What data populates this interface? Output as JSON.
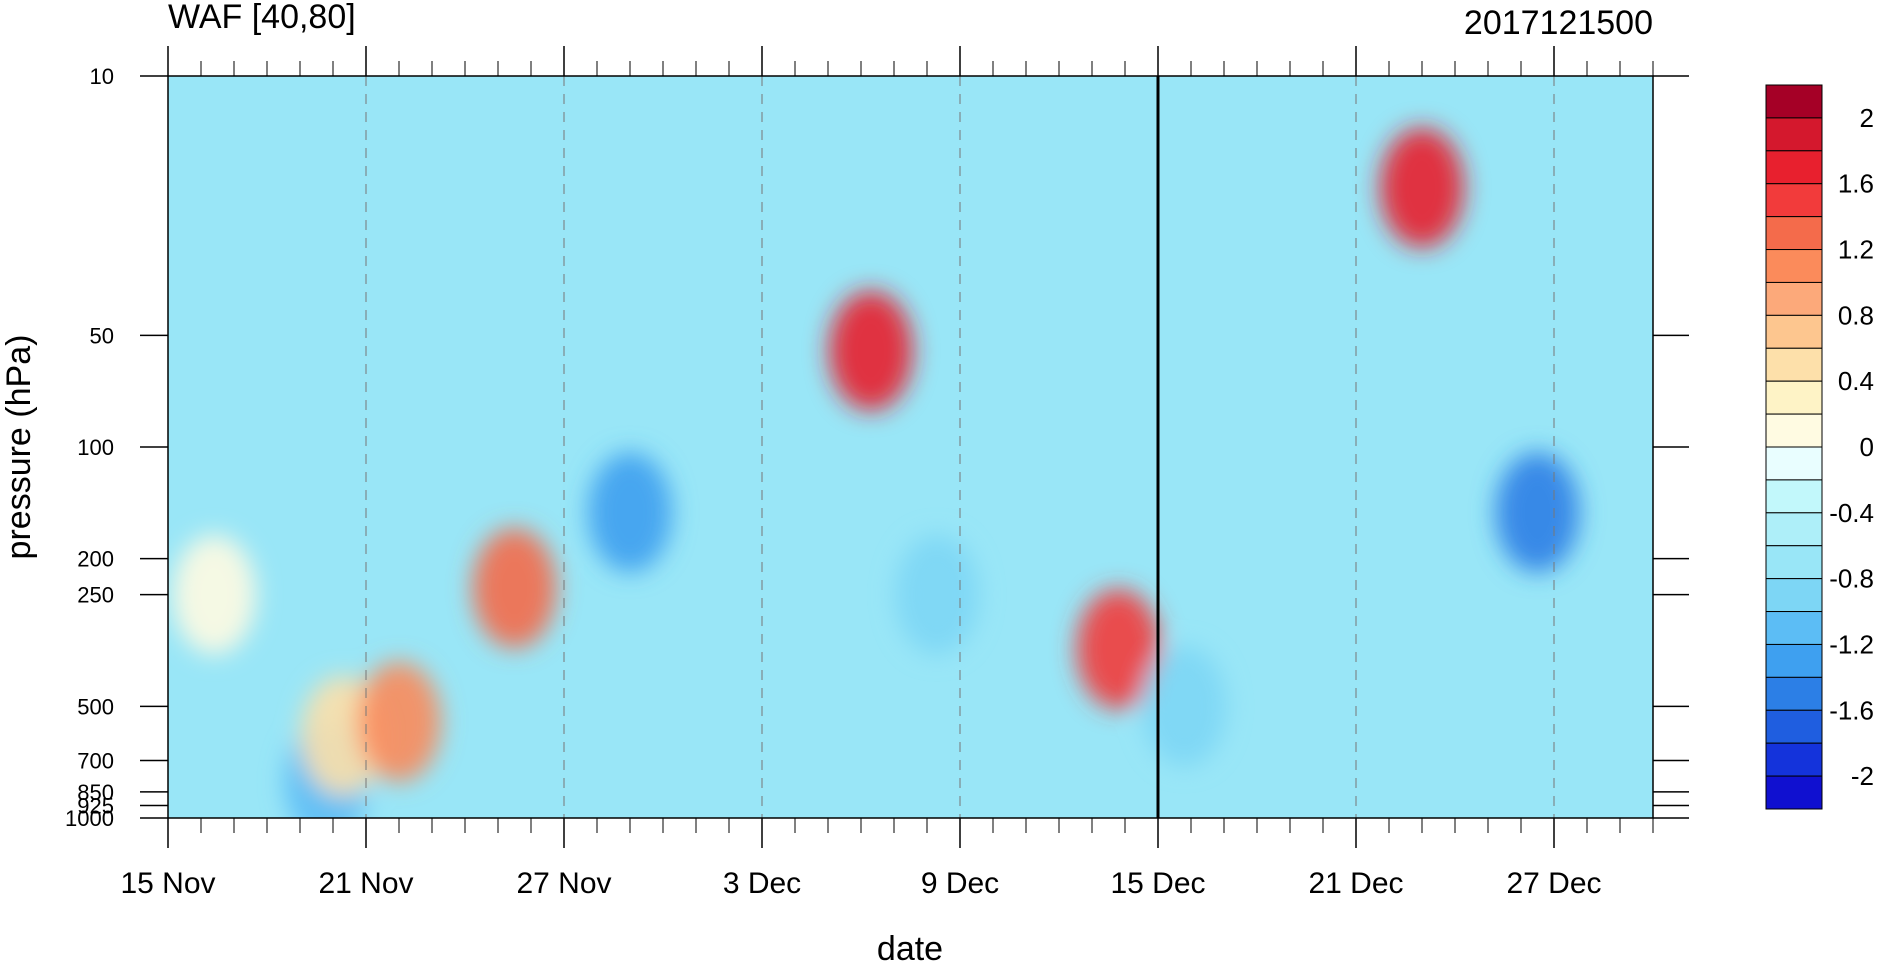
{
  "chart_data": {
    "type": "heatmap",
    "title_left": "WAF [40,80]",
    "title_right": "2017121500",
    "xlabel": "date",
    "ylabel": "pressure (hPa)",
    "x_tick_labels": [
      "15 Nov",
      "21 Nov",
      "27 Nov",
      "3 Dec",
      "9 Dec",
      "15 Dec",
      "21 Dec",
      "27 Dec"
    ],
    "x_range_days": [
      0,
      45
    ],
    "y_levels_hPa": [
      10,
      50,
      100,
      200,
      250,
      500,
      700,
      850,
      925,
      1000
    ],
    "y_tick_labels": [
      "10",
      "50",
      "100",
      "200",
      "250",
      "500",
      "700",
      "850",
      "925",
      "1000"
    ],
    "y_scale": "log",
    "y_range_hPa": [
      10,
      1000
    ],
    "vertical_marker_date": "15 Dec",
    "colorbar_labels": [
      "2",
      "1.6",
      "1.2",
      "0.8",
      "0.4",
      "0",
      "-0.4",
      "-0.8",
      "-1.2",
      "-1.6",
      "-2"
    ],
    "colorbar_levels": [
      2.2,
      2.0,
      1.8,
      1.6,
      1.4,
      1.2,
      1.0,
      0.8,
      0.6,
      0.4,
      0.2,
      0.0,
      -0.2,
      -0.4,
      -0.6,
      -0.8,
      -1.0,
      -1.2,
      -1.4,
      -1.6,
      -1.8,
      -2.0
    ],
    "colors": [
      "#a50026",
      "#d4182d",
      "#e8202e",
      "#f23b3b",
      "#f46b4b",
      "#fb8b5b",
      "#fca97a",
      "#fdc68f",
      "#fde0aa",
      "#fef3c6",
      "#fffbe2",
      "#e9feff",
      "#c2f8fb",
      "#aeeff9",
      "#99e6f7",
      "#7dd6f5",
      "#5cbdf5",
      "#3ea0f0",
      "#2c7fe6",
      "#1f5ee0",
      "#1433db",
      "#1010d0"
    ],
    "features": [
      {
        "day": 4.8,
        "p": 800,
        "value": -1.0
      },
      {
        "day": 1.4,
        "p": 250,
        "value": 0.2
      },
      {
        "day": 5.3,
        "p": 600,
        "value": 0.7
      },
      {
        "day": 7.0,
        "p": 550,
        "value": 1.2
      },
      {
        "day": 10.5,
        "p": 240,
        "value": 1.3
      },
      {
        "day": 14.0,
        "p": 150,
        "value": -1.2
      },
      {
        "day": 21.3,
        "p": 55,
        "value": 1.8
      },
      {
        "day": 23.3,
        "p": 250,
        "value": -0.8
      },
      {
        "day": 28.8,
        "p": 350,
        "value": 1.5
      },
      {
        "day": 30.8,
        "p": 500,
        "value": -0.8
      },
      {
        "day": 38.0,
        "p": 20,
        "value": 1.8
      },
      {
        "day": 41.5,
        "p": 150,
        "value": -1.3
      }
    ]
  }
}
